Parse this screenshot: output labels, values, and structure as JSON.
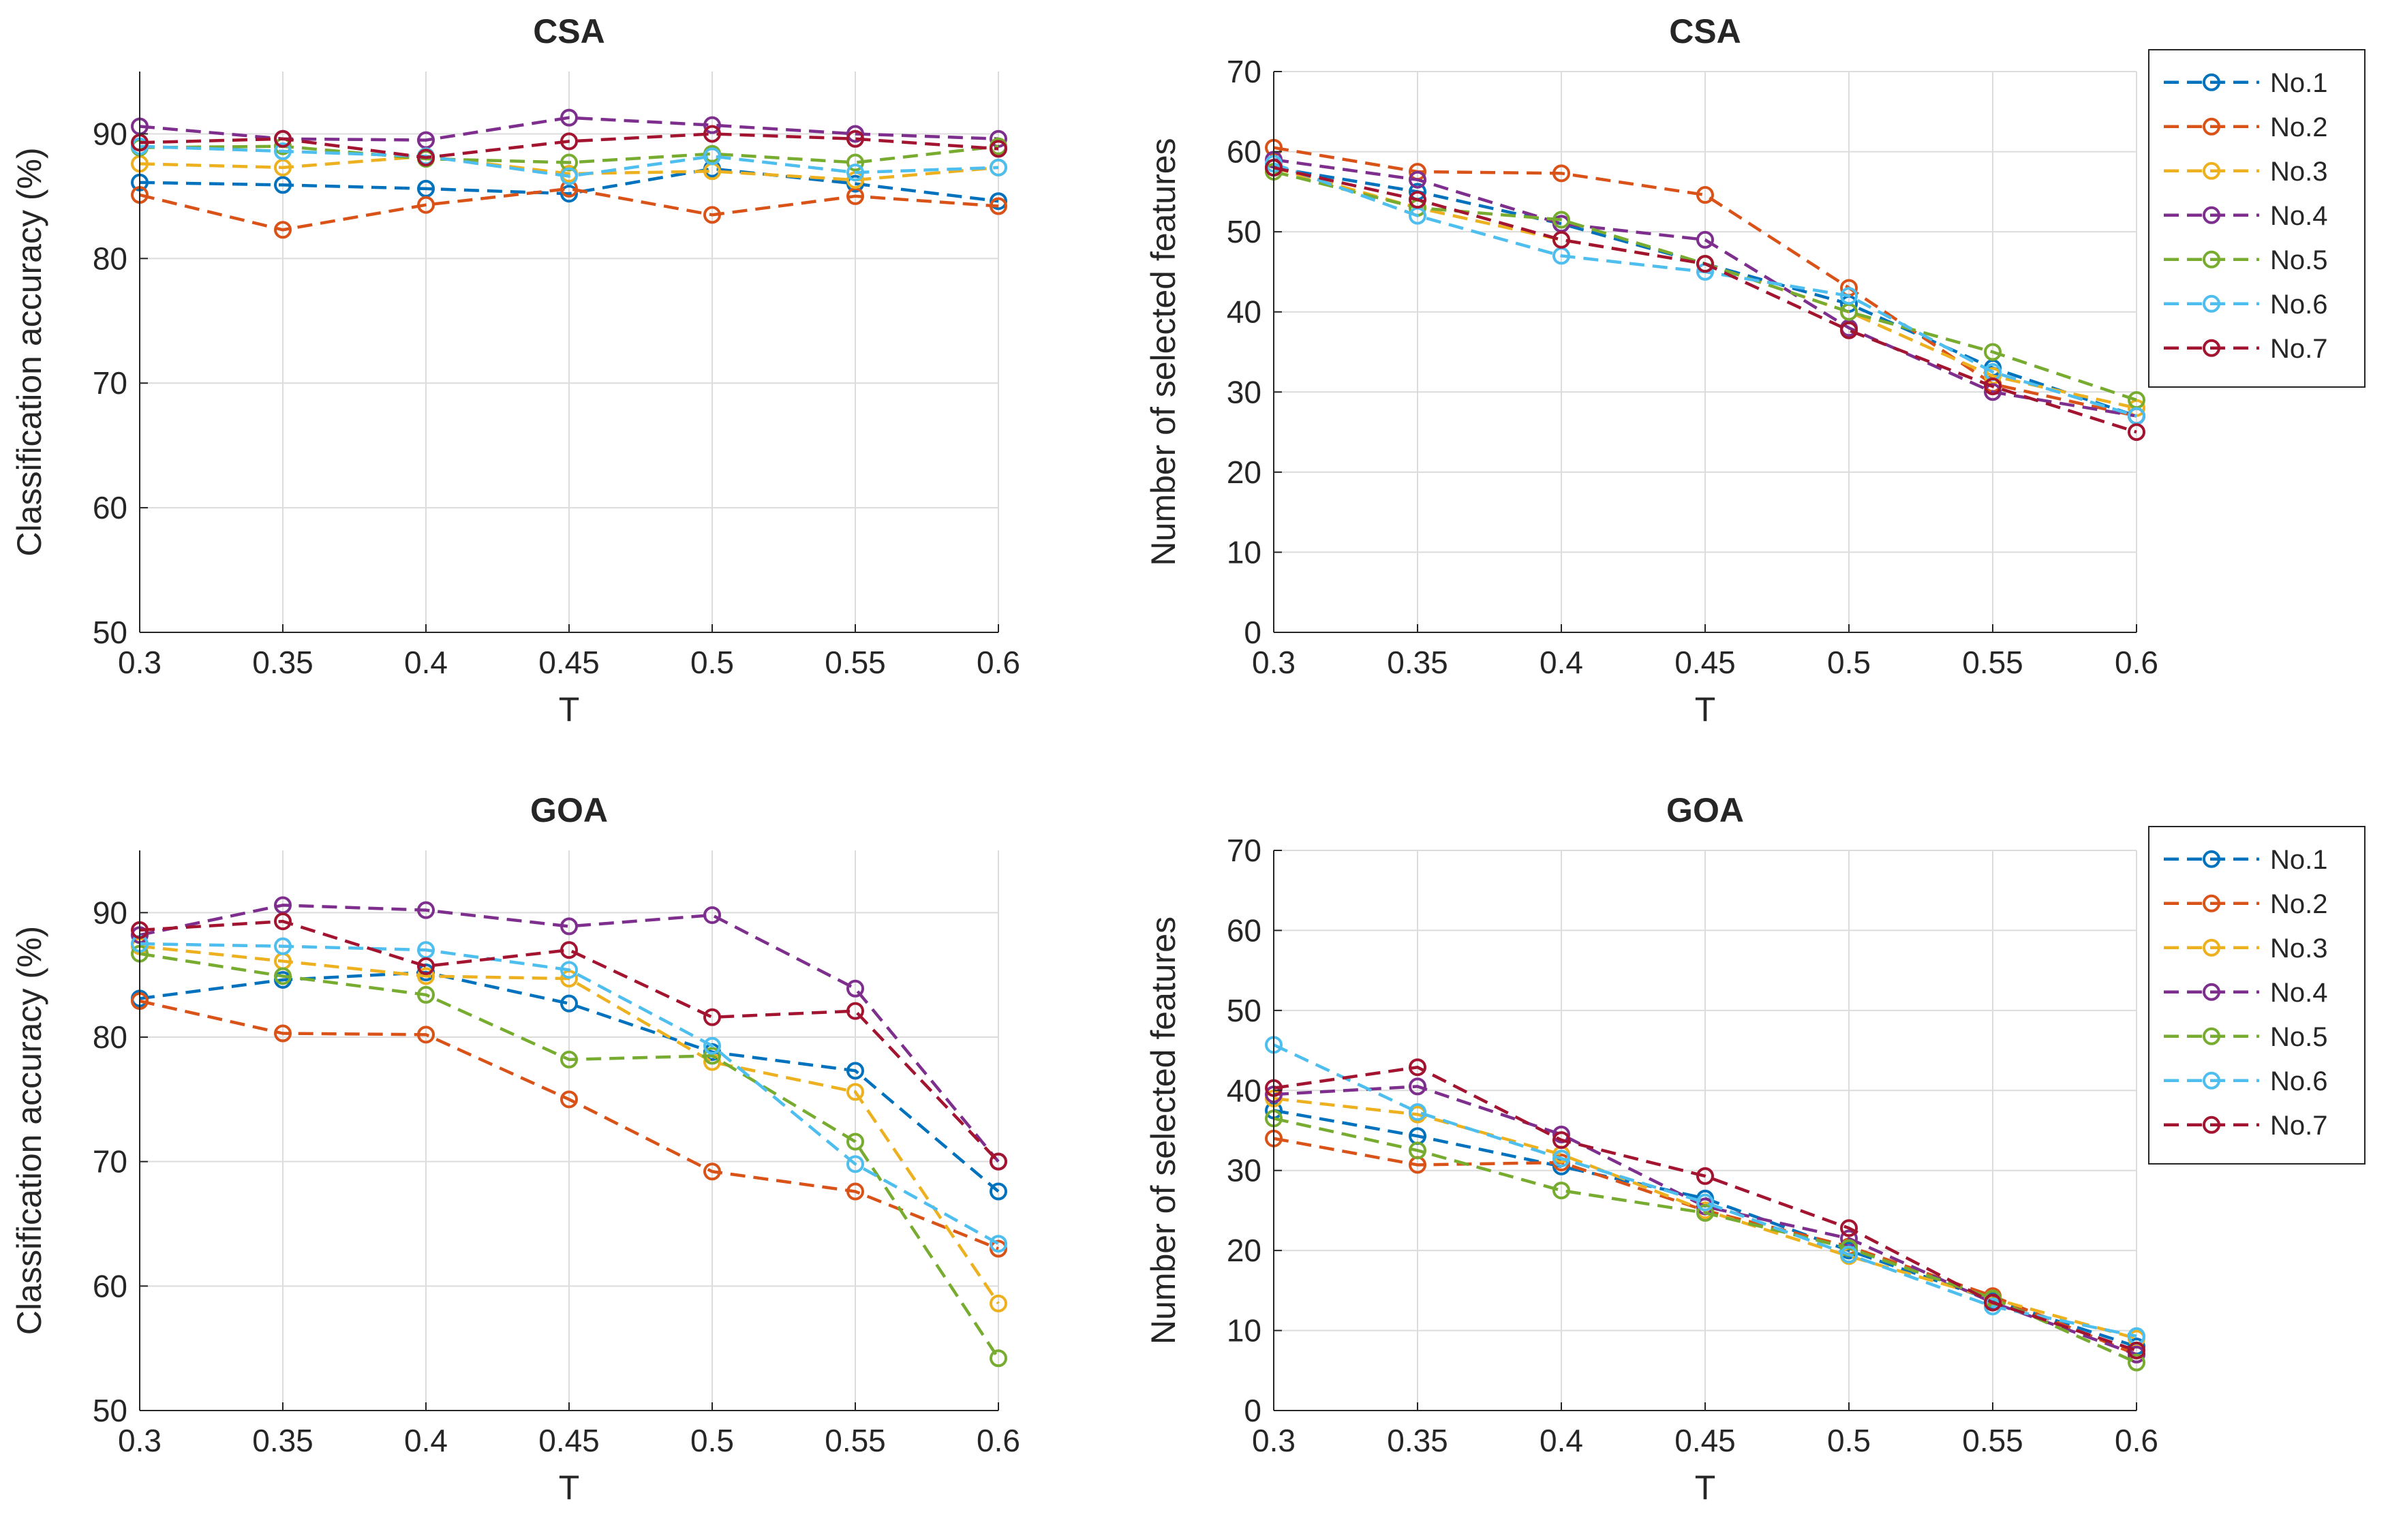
{
  "figure": {
    "series_colors": [
      "#0072BD",
      "#D95319",
      "#EDB120",
      "#7E2F8E",
      "#77AC30",
      "#4DBEEE",
      "#A2142F"
    ]
  },
  "chart_data": [
    {
      "type": "line",
      "title": "CSA",
      "xlabel": "T",
      "ylabel": "Classification accuracy (%)",
      "x": [
        0.3,
        0.35,
        0.4,
        0.45,
        0.5,
        0.55,
        0.6
      ],
      "x_tick_labels": [
        "0.3",
        "0.35",
        "0.4",
        "0.45",
        "0.5",
        "0.55",
        "0.6"
      ],
      "xlim": [
        0.3,
        0.6
      ],
      "ylim": [
        50,
        95
      ],
      "y_ticks": [
        50,
        60,
        70,
        80,
        90
      ],
      "y_tick_labels": [
        "50",
        "60",
        "70",
        "80",
        "90"
      ],
      "grid": true,
      "line_style": "dashed",
      "marker": "circle",
      "legend": false,
      "series": [
        {
          "name": "No.1",
          "values": [
            86.1,
            85.9,
            85.6,
            85.2,
            87.2,
            86.0,
            84.6
          ]
        },
        {
          "name": "No.2",
          "values": [
            85.1,
            82.3,
            84.3,
            85.6,
            83.5,
            85.0,
            84.2
          ]
        },
        {
          "name": "No.3",
          "values": [
            87.6,
            87.3,
            88.2,
            86.8,
            87.0,
            86.3,
            87.3
          ]
        },
        {
          "name": "No.4",
          "values": [
            90.6,
            89.6,
            89.5,
            91.3,
            90.7,
            90.0,
            89.6
          ]
        },
        {
          "name": "No.5",
          "values": [
            88.9,
            89.0,
            88.0,
            87.7,
            88.4,
            87.7,
            89.0
          ]
        },
        {
          "name": "No.6",
          "values": [
            89.0,
            88.6,
            88.2,
            86.6,
            88.2,
            86.9,
            87.3
          ]
        },
        {
          "name": "No.7",
          "values": [
            89.3,
            89.6,
            88.1,
            89.4,
            90.0,
            89.6,
            88.8
          ]
        }
      ]
    },
    {
      "type": "line",
      "title": "CSA",
      "xlabel": "T",
      "ylabel": "Number of selected features",
      "x": [
        0.3,
        0.35,
        0.4,
        0.45,
        0.5,
        0.55,
        0.6
      ],
      "x_tick_labels": [
        "0.3",
        "0.35",
        "0.4",
        "0.45",
        "0.5",
        "0.55",
        "0.6"
      ],
      "xlim": [
        0.3,
        0.6
      ],
      "ylim": [
        0,
        70
      ],
      "y_ticks": [
        0,
        10,
        20,
        30,
        40,
        50,
        60,
        70
      ],
      "y_tick_labels": [
        "0",
        "10",
        "20",
        "30",
        "40",
        "50",
        "60",
        "70"
      ],
      "grid": true,
      "line_style": "dashed",
      "marker": "circle",
      "legend": true,
      "legend_position": "outside-top-right",
      "series": [
        {
          "name": "No.1",
          "values": [
            58,
            55,
            51,
            46,
            41,
            33,
            27
          ]
        },
        {
          "name": "No.2",
          "values": [
            60.5,
            57.5,
            57.3,
            54.6,
            43,
            31,
            27
          ]
        },
        {
          "name": "No.3",
          "values": [
            58,
            53,
            49,
            46,
            40,
            32,
            28
          ]
        },
        {
          "name": "No.4",
          "values": [
            59,
            56.5,
            51,
            49,
            38,
            30,
            27
          ]
        },
        {
          "name": "No.5",
          "values": [
            57.5,
            53,
            51.5,
            46,
            40,
            35,
            29
          ]
        },
        {
          "name": "No.6",
          "values": [
            58.5,
            52,
            47,
            45,
            42,
            32.5,
            27
          ]
        },
        {
          "name": "No.7",
          "values": [
            58,
            54,
            49,
            46,
            37.7,
            30.7,
            25
          ]
        }
      ]
    },
    {
      "type": "line",
      "title": "GOA",
      "xlabel": "T",
      "ylabel": "Classification accuracy (%)",
      "x": [
        0.3,
        0.35,
        0.4,
        0.45,
        0.5,
        0.55,
        0.6
      ],
      "x_tick_labels": [
        "0.3",
        "0.35",
        "0.4",
        "0.45",
        "0.5",
        "0.55",
        "0.6"
      ],
      "xlim": [
        0.3,
        0.6
      ],
      "ylim": [
        50,
        95
      ],
      "y_ticks": [
        50,
        60,
        70,
        80,
        90
      ],
      "y_tick_labels": [
        "50",
        "60",
        "70",
        "80",
        "90"
      ],
      "grid": true,
      "line_style": "dashed",
      "marker": "circle",
      "legend": false,
      "series": [
        {
          "name": "No.1",
          "values": [
            83.1,
            84.6,
            85.2,
            82.7,
            78.8,
            77.3,
            67.6
          ]
        },
        {
          "name": "No.2",
          "values": [
            82.9,
            80.3,
            80.2,
            75.0,
            69.2,
            67.6,
            63.0
          ]
        },
        {
          "name": "No.3",
          "values": [
            87.3,
            86.1,
            84.9,
            84.7,
            78.0,
            75.6,
            58.6
          ]
        },
        {
          "name": "No.4",
          "values": [
            88.2,
            90.6,
            90.2,
            88.9,
            89.8,
            83.9,
            70.0
          ]
        },
        {
          "name": "No.5",
          "values": [
            86.7,
            84.9,
            83.4,
            78.2,
            78.5,
            71.6,
            54.2
          ]
        },
        {
          "name": "No.6",
          "values": [
            87.5,
            87.3,
            87.0,
            85.4,
            79.3,
            69.8,
            63.4
          ]
        },
        {
          "name": "No.7",
          "values": [
            88.6,
            89.3,
            85.7,
            87.0,
            81.6,
            82.1,
            70.0
          ]
        }
      ]
    },
    {
      "type": "line",
      "title": "GOA",
      "xlabel": "T",
      "ylabel": "Number of selected features",
      "x": [
        0.3,
        0.35,
        0.4,
        0.45,
        0.5,
        0.55,
        0.6
      ],
      "x_tick_labels": [
        "0.3",
        "0.35",
        "0.4",
        "0.45",
        "0.5",
        "0.55",
        "0.6"
      ],
      "xlim": [
        0.3,
        0.6
      ],
      "ylim": [
        0,
        70
      ],
      "y_ticks": [
        0,
        10,
        20,
        30,
        40,
        50,
        60,
        70
      ],
      "y_tick_labels": [
        "0",
        "10",
        "20",
        "30",
        "40",
        "50",
        "60",
        "70"
      ],
      "grid": true,
      "line_style": "dashed",
      "marker": "circle",
      "legend": true,
      "legend_position": "outside-top-right",
      "series": [
        {
          "name": "No.1",
          "values": [
            37.5,
            34.3,
            30.5,
            26.5,
            20,
            13.8,
            8
          ]
        },
        {
          "name": "No.2",
          "values": [
            34,
            30.7,
            31,
            25,
            20.5,
            14.3,
            7
          ]
        },
        {
          "name": "No.3",
          "values": [
            39,
            37,
            32,
            25,
            19.3,
            14,
            9
          ]
        },
        {
          "name": "No.4",
          "values": [
            39.5,
            40.5,
            34.5,
            25.5,
            21.5,
            13.5,
            7
          ]
        },
        {
          "name": "No.5",
          "values": [
            36.5,
            32.5,
            27.5,
            24.7,
            20.3,
            14,
            6
          ]
        },
        {
          "name": "No.6",
          "values": [
            45.7,
            37.3,
            31.5,
            26,
            19.5,
            13,
            9.3
          ]
        },
        {
          "name": "No.7",
          "values": [
            40.3,
            42.9,
            33.8,
            29.3,
            22.8,
            13.5,
            7.5
          ]
        }
      ]
    }
  ]
}
